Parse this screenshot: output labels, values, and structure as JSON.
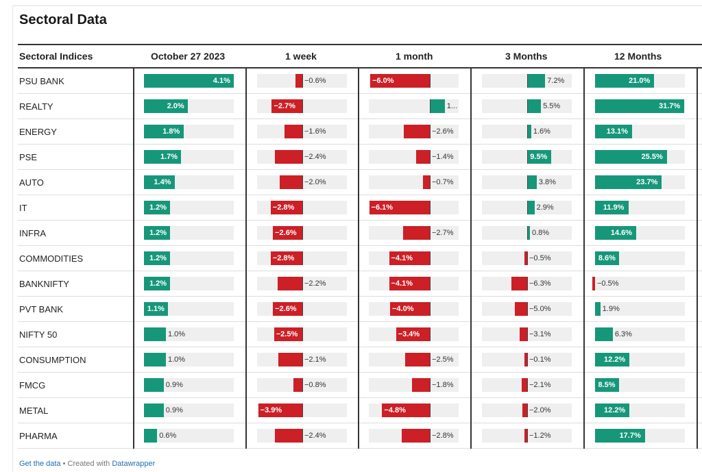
{
  "title": "Sectoral Data",
  "columns": [
    "Sectoral Indices",
    "October 27 2023",
    "1 week",
    "1 month",
    "3 Months",
    "12 Months"
  ],
  "colors": {
    "positive": "#16977a",
    "negative": "#cc1f26",
    "track": "#efefef"
  },
  "footer": {
    "get_data": "Get the data",
    "separator": " • Created with ",
    "created_with": "Datawrapper"
  },
  "chart_data": {
    "type": "table",
    "title": "Sectoral Data",
    "columns": [
      "October 27 2023",
      "1 week",
      "1 month",
      "3 Months",
      "12 Months"
    ],
    "unit": "%",
    "rows": [
      {
        "name": "PSU BANK",
        "values": [
          4.1,
          -0.6,
          -6.0,
          7.2,
          21.0
        ]
      },
      {
        "name": "REALTY",
        "values": [
          2.0,
          -2.7,
          1.5,
          5.5,
          31.7
        ]
      },
      {
        "name": "ENERGY",
        "values": [
          1.8,
          -1.6,
          -2.6,
          1.6,
          13.1
        ]
      },
      {
        "name": "PSE",
        "values": [
          1.7,
          -2.4,
          -1.4,
          9.5,
          25.5
        ]
      },
      {
        "name": "AUTO",
        "values": [
          1.4,
          -2.0,
          -0.7,
          3.8,
          23.7
        ]
      },
      {
        "name": "IT",
        "values": [
          1.2,
          -2.8,
          -6.1,
          2.9,
          11.9
        ]
      },
      {
        "name": "INFRA",
        "values": [
          1.2,
          -2.6,
          -2.7,
          0.8,
          14.6
        ]
      },
      {
        "name": "COMMODITIES",
        "values": [
          1.2,
          -2.8,
          -4.1,
          -0.5,
          8.6
        ]
      },
      {
        "name": "BANKNIFTY",
        "values": [
          1.2,
          -2.2,
          -4.1,
          -6.3,
          -0.5
        ]
      },
      {
        "name": "PVT BANK",
        "values": [
          1.1,
          -2.6,
          -4.0,
          -5.0,
          1.9
        ]
      },
      {
        "name": "NIFTY 50",
        "values": [
          1.0,
          -2.5,
          -3.4,
          -3.1,
          6.3
        ]
      },
      {
        "name": "CONSUMPTION",
        "values": [
          1.0,
          -2.1,
          -2.5,
          -0.1,
          12.2
        ]
      },
      {
        "name": "FMCG",
        "values": [
          0.9,
          -0.8,
          -1.8,
          -2.1,
          8.5
        ]
      },
      {
        "name": "METAL",
        "values": [
          0.9,
          -3.9,
          -4.8,
          -2.0,
          12.2
        ]
      },
      {
        "name": "PHARMA",
        "values": [
          0.6,
          -2.4,
          -2.8,
          -1.2,
          17.7
        ]
      }
    ],
    "display_labels": {
      "1": {
        "2": "1..."
      }
    }
  }
}
